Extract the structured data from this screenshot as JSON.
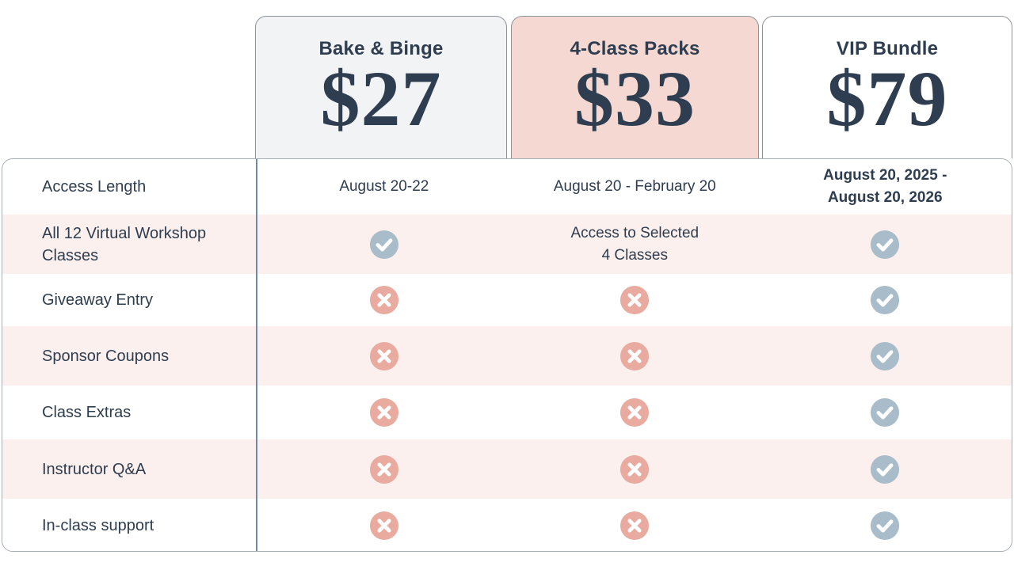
{
  "theme": {
    "text_navy": "#2e3d4f",
    "card_gray_bg": "#f2f3f5",
    "card_pink_bg": "#f5d8d2",
    "card_white_bg": "#ffffff",
    "row_stripe_bg": "#fbf0ed",
    "check_circle_color": "#a9bcca",
    "cross_circle_color": "#e9aba0",
    "divider_color": "#6d8ba3",
    "table_border_color": "#a9afb6"
  },
  "plans": [
    {
      "name": "Bake & Binge",
      "price": "$27"
    },
    {
      "name": "4-Class Packs",
      "price": "$33"
    },
    {
      "name": "VIP Bundle",
      "price": "$79"
    }
  ],
  "features": {
    "rows": [
      {
        "label": "Access Length",
        "cells": [
          {
            "type": "text",
            "lines": [
              "August 20-22"
            ]
          },
          {
            "type": "text",
            "lines": [
              "August 20 - February 20"
            ]
          },
          {
            "type": "text",
            "bold": true,
            "lines": [
              "August 20, 2025 -",
              "August 20, 2026"
            ]
          }
        ]
      },
      {
        "label": "All 12 Virtual Workshop Classes",
        "cells": [
          {
            "type": "check"
          },
          {
            "type": "text",
            "lines": [
              "Access to Selected",
              "4 Classes"
            ]
          },
          {
            "type": "check"
          }
        ]
      },
      {
        "label": "Giveaway Entry",
        "cells": [
          {
            "type": "cross"
          },
          {
            "type": "cross"
          },
          {
            "type": "check"
          }
        ]
      },
      {
        "label": "Sponsor Coupons",
        "cells": [
          {
            "type": "cross"
          },
          {
            "type": "cross"
          },
          {
            "type": "check"
          }
        ]
      },
      {
        "label": "Class Extras",
        "cells": [
          {
            "type": "cross"
          },
          {
            "type": "cross"
          },
          {
            "type": "check"
          }
        ]
      },
      {
        "label": "Instructor Q&A",
        "cells": [
          {
            "type": "cross"
          },
          {
            "type": "cross"
          },
          {
            "type": "check"
          }
        ]
      },
      {
        "label": "In-class support",
        "cells": [
          {
            "type": "cross"
          },
          {
            "type": "cross"
          },
          {
            "type": "check"
          }
        ]
      }
    ]
  }
}
